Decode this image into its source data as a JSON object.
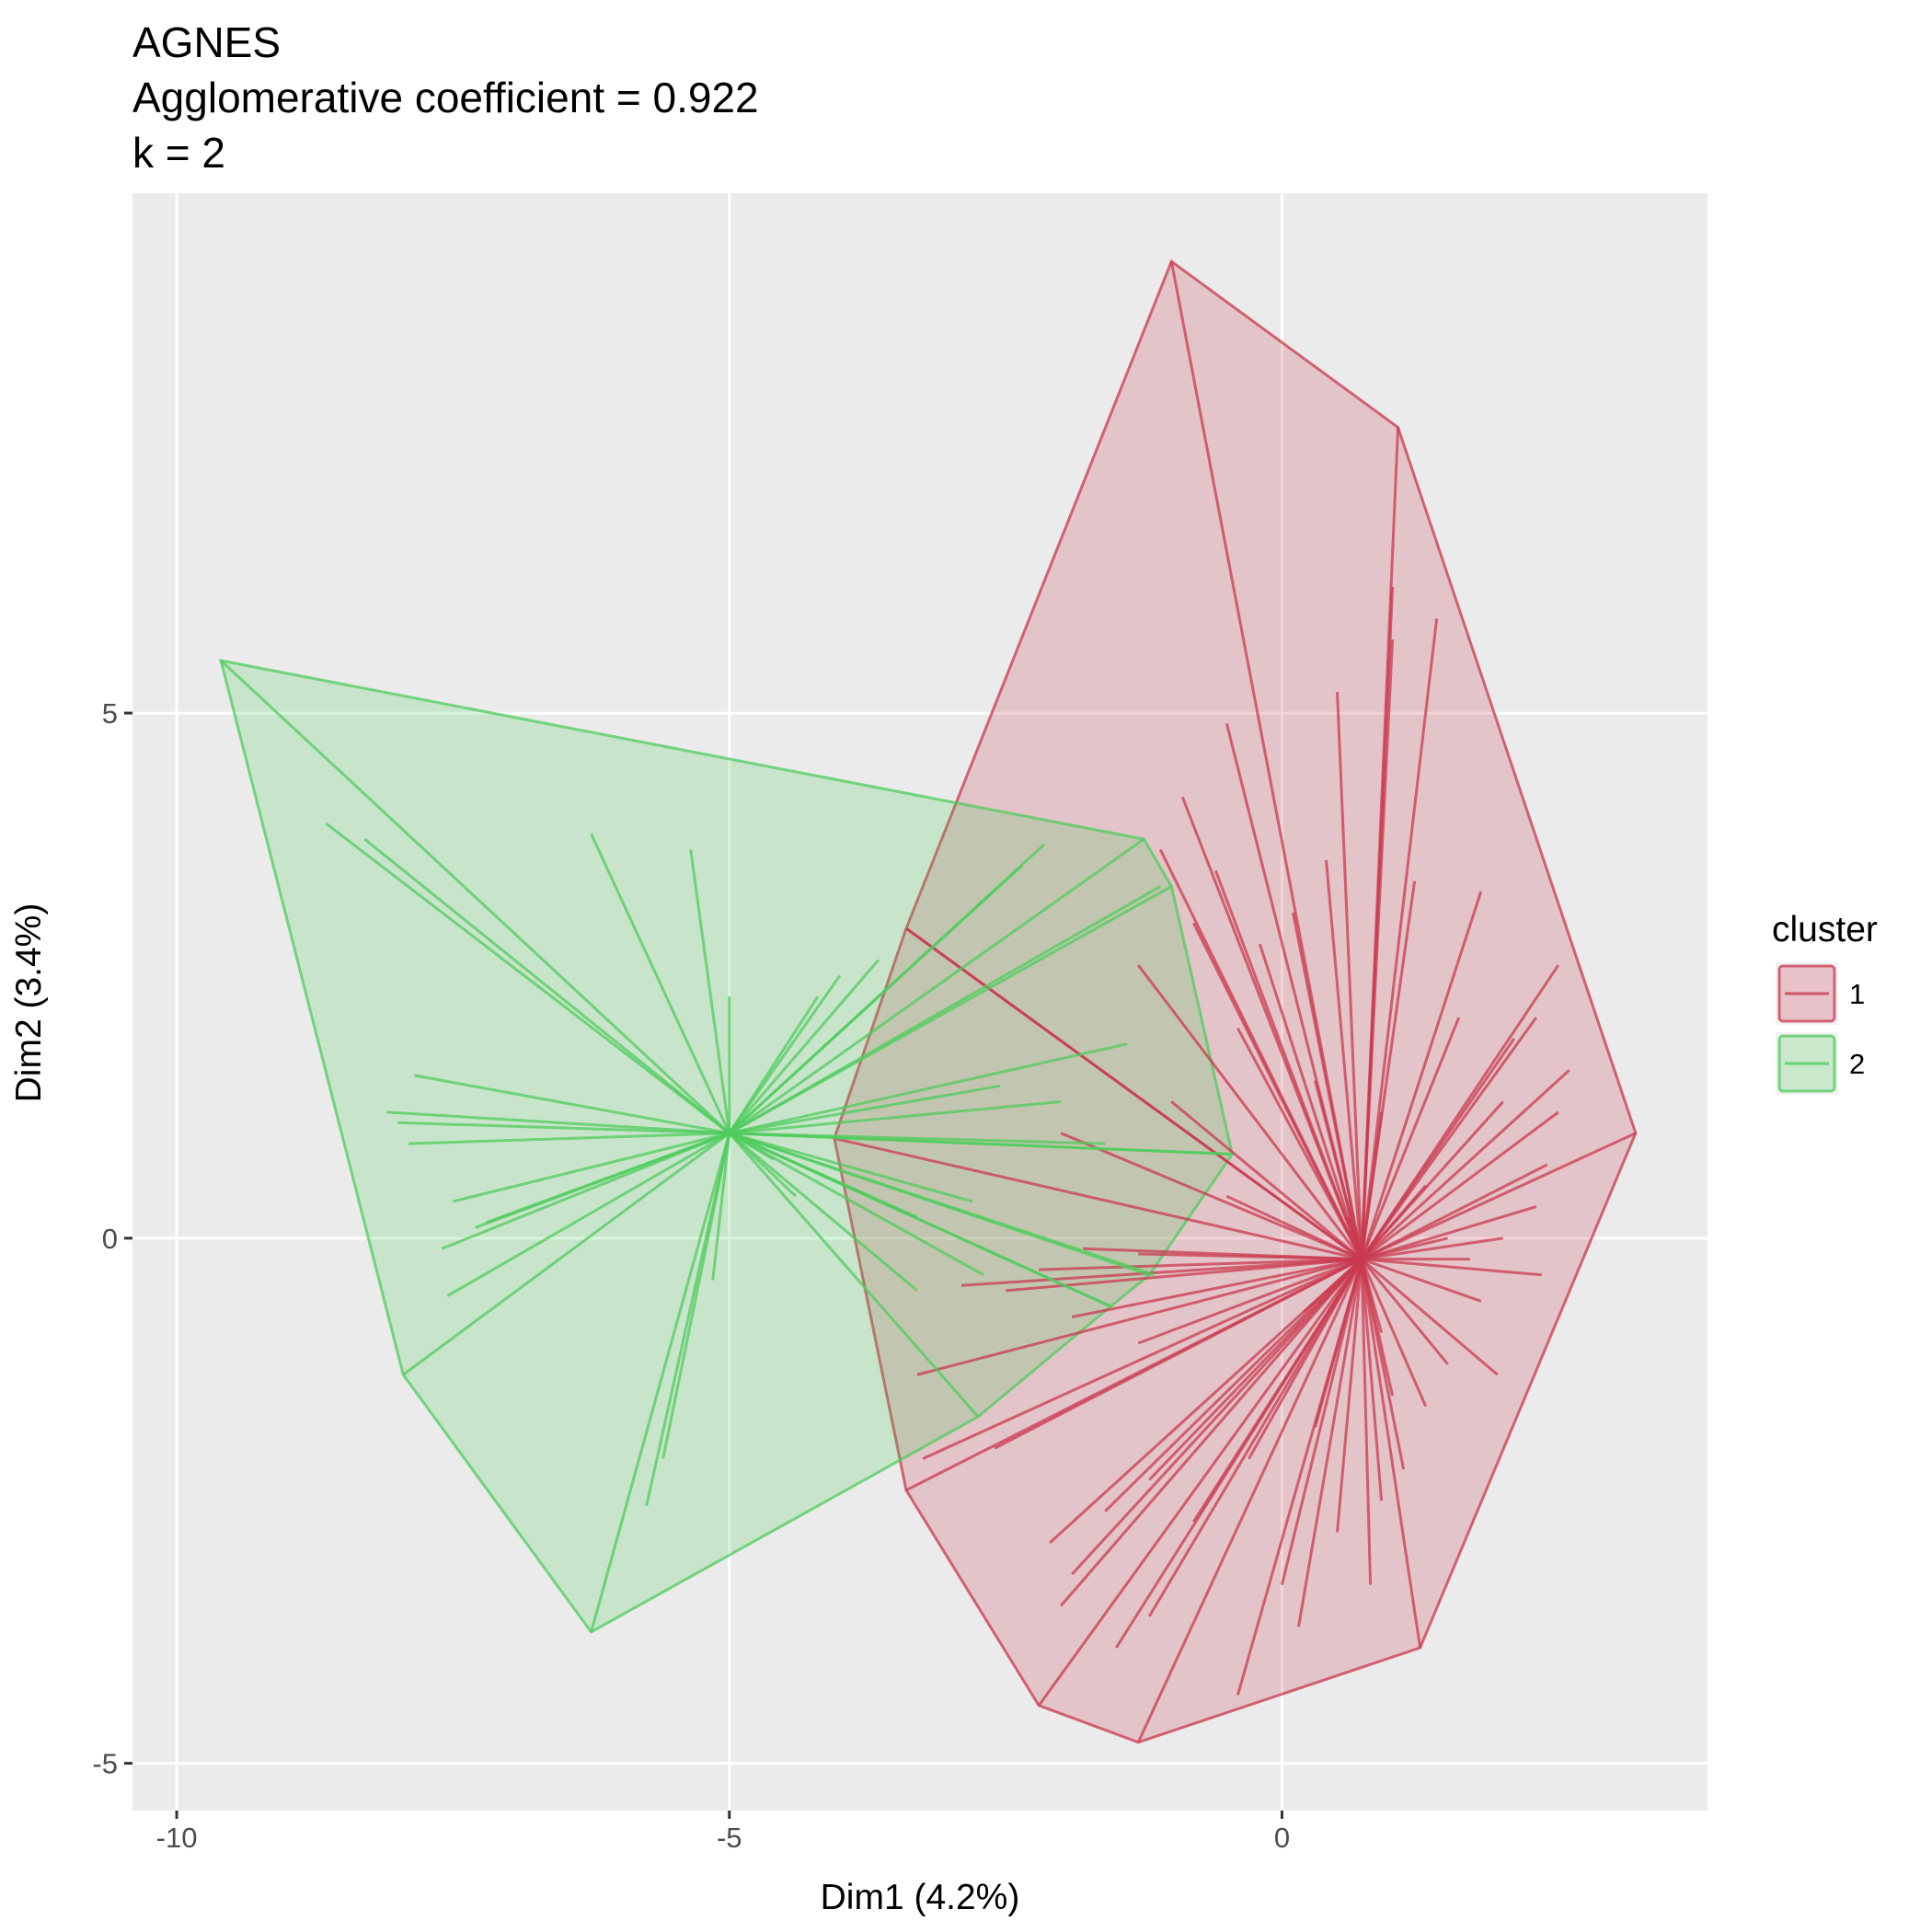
{
  "chart_data": {
    "type": "scatter",
    "subtype": "cluster-star-plot-with-convex-hulls",
    "title_lines": [
      "AGNES",
      "Agglomerative coefficient = 0.922",
      "k = 2"
    ],
    "xlabel": "Dim1 (4.2%)",
    "ylabel": "Dim2 (3.4%)",
    "xlim": [
      -10.4,
      3.85
    ],
    "ylim": [
      -5.45,
      9.95
    ],
    "x_ticks": [
      -10,
      -5,
      0
    ],
    "x_tick_labels": [
      "-10",
      "-5",
      "0"
    ],
    "y_ticks": [
      -5,
      0,
      5
    ],
    "y_tick_labels": [
      "-5",
      "0",
      "5"
    ],
    "grid": true,
    "panel_background": "#ebebeb",
    "grid_color": "#ffffff",
    "legend": {
      "title": "cluster",
      "position": "right",
      "entries": [
        "1",
        "2"
      ]
    },
    "series": [
      {
        "name": "1",
        "color": "#c9394f",
        "fill": "#c9394f",
        "center": [
          0.72,
          -0.2
        ],
        "hull": [
          [
            -1.0,
            9.3
          ],
          [
            1.05,
            7.72
          ],
          [
            3.2,
            1.0
          ],
          [
            1.25,
            -3.9
          ],
          [
            -1.3,
            -4.8
          ],
          [
            -2.2,
            -4.45
          ],
          [
            -3.4,
            -2.4
          ],
          [
            -4.05,
            0.95
          ],
          [
            -3.4,
            2.95
          ]
        ],
        "points": [
          [
            1.0,
            6.2
          ],
          [
            1.4,
            5.9
          ],
          [
            0.5,
            5.2
          ],
          [
            1.0,
            5.7
          ],
          [
            -0.5,
            4.9
          ],
          [
            -0.9,
            4.2
          ],
          [
            -1.1,
            3.7
          ],
          [
            -0.6,
            3.5
          ],
          [
            1.8,
            3.3
          ],
          [
            0.1,
            3.1
          ],
          [
            -0.8,
            3.0
          ],
          [
            -0.2,
            2.8
          ],
          [
            2.5,
            2.6
          ],
          [
            0.4,
            3.6
          ],
          [
            1.2,
            3.4
          ],
          [
            -1.3,
            2.6
          ],
          [
            2.3,
            2.1
          ],
          [
            -3.4,
            2.95
          ],
          [
            2.1,
            1.9
          ],
          [
            2.6,
            1.6
          ],
          [
            2.5,
            1.2
          ],
          [
            2.4,
            0.7
          ],
          [
            2.3,
            0.3
          ],
          [
            2.0,
            0.0
          ],
          [
            2.35,
            -0.35
          ],
          [
            1.8,
            -0.6
          ],
          [
            1.95,
            -1.3
          ],
          [
            -1.3,
            -0.15
          ],
          [
            -1.8,
            -0.1
          ],
          [
            -2.2,
            -0.3
          ],
          [
            -2.5,
            -0.5
          ],
          [
            -2.9,
            -0.45
          ],
          [
            -3.3,
            -1.3
          ],
          [
            -3.25,
            -2.1
          ],
          [
            -2.6,
            -2.0
          ],
          [
            1.1,
            -2.2
          ],
          [
            1.3,
            -1.6
          ],
          [
            0.9,
            -2.5
          ],
          [
            0.5,
            -2.8
          ],
          [
            0.8,
            -3.3
          ],
          [
            0.0,
            -3.3
          ],
          [
            0.15,
            -3.7
          ],
          [
            -0.4,
            -4.35
          ],
          [
            -1.2,
            -3.6
          ],
          [
            -1.5,
            -3.9
          ],
          [
            -2.0,
            -3.5
          ],
          [
            -1.9,
            -3.2
          ],
          [
            -2.1,
            -2.9
          ],
          [
            -1.6,
            -2.6
          ],
          [
            -1.2,
            -2.3
          ],
          [
            -0.8,
            -2.7
          ],
          [
            -0.3,
            -2.1
          ],
          [
            0.3,
            -1.8
          ],
          [
            1.0,
            -1.5
          ],
          [
            1.5,
            -1.2
          ],
          [
            0.6,
            0.2
          ],
          [
            1.5,
            0.0
          ],
          [
            -0.5,
            0.4
          ],
          [
            0.9,
            1.2
          ],
          [
            0.3,
            1.5
          ],
          [
            1.6,
            2.1
          ],
          [
            2.0,
            1.3
          ],
          [
            -1.0,
            1.3
          ],
          [
            -0.4,
            2.0
          ],
          [
            -2.0,
            1.0
          ],
          [
            1.3,
            0.5
          ],
          [
            -1.9,
            -0.75
          ],
          [
            0.2,
            -0.7
          ],
          [
            0.9,
            -0.9
          ],
          [
            1.7,
            -0.2
          ],
          [
            -1.3,
            -1.0
          ]
        ]
      },
      {
        "name": "2",
        "color": "#4fcc5c",
        "fill": "#4fcc5c",
        "center": [
          -5.0,
          1.0
        ],
        "hull": [
          [
            -9.6,
            5.5
          ],
          [
            -1.25,
            3.8
          ],
          [
            -1.0,
            3.35
          ],
          [
            -0.45,
            0.8
          ],
          [
            -1.2,
            -0.35
          ],
          [
            -1.55,
            -0.65
          ],
          [
            -2.75,
            -1.7
          ],
          [
            -6.25,
            -3.75
          ],
          [
            -7.95,
            -1.3
          ]
        ],
        "points": [
          [
            -8.65,
            3.95
          ],
          [
            -8.3,
            3.8
          ],
          [
            -6.25,
            3.85
          ],
          [
            -5.35,
            3.7
          ],
          [
            -4.0,
            2.5
          ],
          [
            -4.2,
            2.3
          ],
          [
            -2.15,
            3.75
          ],
          [
            -2.35,
            3.55
          ],
          [
            -1.1,
            3.35
          ],
          [
            -3.65,
            2.65
          ],
          [
            -1.4,
            1.85
          ],
          [
            -2.55,
            1.45
          ],
          [
            -7.85,
            1.55
          ],
          [
            -8.1,
            1.2
          ],
          [
            -8.0,
            1.1
          ],
          [
            -7.9,
            0.9
          ],
          [
            -7.5,
            0.35
          ],
          [
            -7.2,
            0.15
          ],
          [
            -7.3,
            0.1
          ],
          [
            -7.6,
            -0.1
          ],
          [
            -7.55,
            -0.55
          ],
          [
            -5.0,
            2.3
          ],
          [
            -4.6,
            0.75
          ],
          [
            -4.4,
            0.4
          ],
          [
            -3.3,
            0.2
          ],
          [
            -3.3,
            -0.5
          ],
          [
            -2.7,
            -0.35
          ],
          [
            -1.15,
            -0.35
          ],
          [
            -1.55,
            -0.65
          ],
          [
            -2.0,
            1.3
          ],
          [
            -1.6,
            0.9
          ],
          [
            -5.15,
            -0.4
          ],
          [
            -5.75,
            -2.55
          ],
          [
            -5.6,
            -2.1
          ],
          [
            -0.45,
            0.8
          ],
          [
            -2.8,
            0.35
          ]
        ]
      }
    ]
  }
}
